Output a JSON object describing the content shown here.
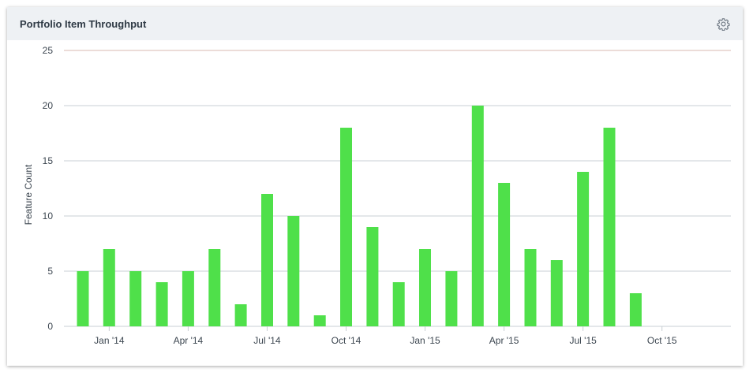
{
  "header": {
    "title": "Portfolio Item Throughput",
    "settings_icon": "gear-icon"
  },
  "colors": {
    "bar": "#4fe04a",
    "header_bg": "#eef1f4",
    "grid": "#c9cfd4",
    "top_grid": "#d9b9b0"
  },
  "chart_data": {
    "type": "bar",
    "title": "Portfolio Item Throughput",
    "xlabel": "",
    "ylabel": "Feature Count",
    "ylim": [
      0,
      25
    ],
    "y_ticks": [
      0,
      5,
      10,
      15,
      20,
      25
    ],
    "grid": true,
    "legend": "none",
    "x_tick_labels": [
      "Jan '14",
      "Apr '14",
      "Jul '14",
      "Oct '14",
      "Jan '15",
      "Apr '15",
      "Jul '15",
      "Oct '15"
    ],
    "categories": [
      "Dec 2013",
      "Jan 2014",
      "Feb 2014",
      "Mar 2014",
      "Apr 2014",
      "May 2014",
      "Jun 2014",
      "Jul 2014",
      "Aug 2014",
      "Sep 2014",
      "Oct 2014",
      "Nov 2014",
      "Dec 2014",
      "Jan 2015",
      "Feb 2015",
      "Mar 2015",
      "Apr 2015",
      "May 2015",
      "Jun 2015",
      "Jul 2015",
      "Aug 2015",
      "Sep 2015"
    ],
    "values": [
      5,
      7,
      5,
      4,
      5,
      7,
      2,
      12,
      10,
      1,
      18,
      9,
      4,
      7,
      5,
      20,
      13,
      7,
      6,
      14,
      18,
      3
    ]
  }
}
